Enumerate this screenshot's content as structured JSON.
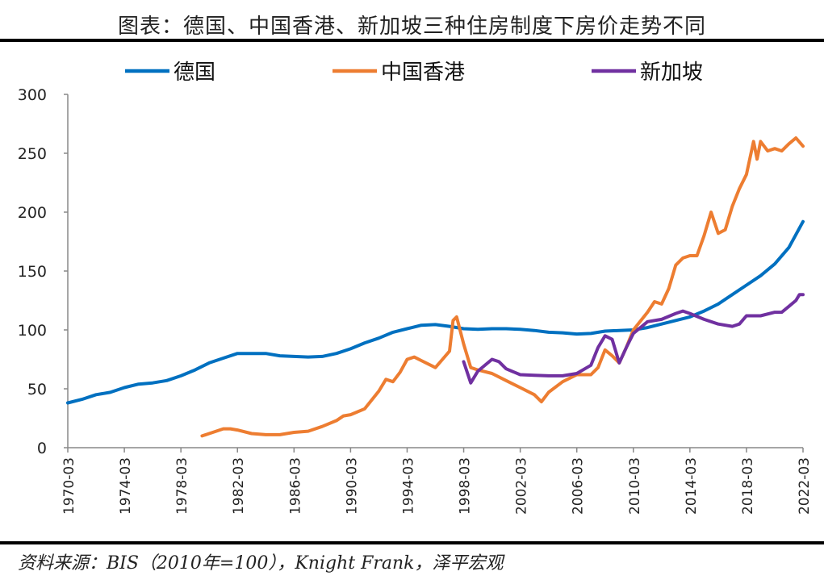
{
  "header": {
    "title": "图表：德国、中国香港、新加坡三种住房制度下房价走势不同"
  },
  "footer": {
    "source": "资料来源：BIS（2010年=100），Knight Frank，泽平宏观"
  },
  "chart_data": {
    "type": "line",
    "title": "图表：德国、中国香港、新加坡三种住房制度下房价走势不同",
    "xlabel": "",
    "ylabel": "",
    "ylim": [
      0,
      300
    ],
    "yticks": [
      "0",
      "50",
      "100",
      "150",
      "200",
      "250",
      "300"
    ],
    "xlim": [
      "1970-03",
      "2022-03"
    ],
    "xticks": [
      "1970-03",
      "1974-03",
      "1978-03",
      "1982-03",
      "1986-03",
      "1990-03",
      "1994-03",
      "1998-03",
      "2002-03",
      "2006-03",
      "2010-03",
      "2014-03",
      "2018-03",
      "2022-03"
    ],
    "legend": "top",
    "grid": false,
    "series": [
      {
        "name": "德国",
        "color": "#0070C0",
        "points": [
          [
            "1970-03",
            38
          ],
          [
            "1971-03",
            41
          ],
          [
            "1972-03",
            45
          ],
          [
            "1973-03",
            47
          ],
          [
            "1974-03",
            51
          ],
          [
            "1975-03",
            54
          ],
          [
            "1976-03",
            55
          ],
          [
            "1977-03",
            57
          ],
          [
            "1978-03",
            61
          ],
          [
            "1979-03",
            66
          ],
          [
            "1980-03",
            72
          ],
          [
            "1981-03",
            76
          ],
          [
            "1982-03",
            80
          ],
          [
            "1983-03",
            80
          ],
          [
            "1984-03",
            80
          ],
          [
            "1985-03",
            78
          ],
          [
            "1986-03",
            77.5
          ],
          [
            "1987-03",
            77
          ],
          [
            "1988-03",
            77.5
          ],
          [
            "1989-03",
            80
          ],
          [
            "1990-03",
            84
          ],
          [
            "1991-03",
            89
          ],
          [
            "1992-03",
            93
          ],
          [
            "1993-03",
            98
          ],
          [
            "1994-03",
            101
          ],
          [
            "1995-03",
            104
          ],
          [
            "1996-03",
            104.5
          ],
          [
            "1997-03",
            103
          ],
          [
            "1998-03",
            101
          ],
          [
            "1999-03",
            100.5
          ],
          [
            "2000-03",
            101
          ],
          [
            "2001-03",
            101
          ],
          [
            "2002-03",
            100.5
          ],
          [
            "2003-03",
            99.5
          ],
          [
            "2004-03",
            98
          ],
          [
            "2005-03",
            97.5
          ],
          [
            "2006-03",
            96.5
          ],
          [
            "2007-03",
            97
          ],
          [
            "2008-03",
            99
          ],
          [
            "2009-03",
            99.5
          ],
          [
            "2010-03",
            100
          ],
          [
            "2011-03",
            102
          ],
          [
            "2012-03",
            105
          ],
          [
            "2013-03",
            108
          ],
          [
            "2014-03",
            111
          ],
          [
            "2015-03",
            116
          ],
          [
            "2016-03",
            122
          ],
          [
            "2017-03",
            130
          ],
          [
            "2018-03",
            138
          ],
          [
            "2019-03",
            146
          ],
          [
            "2020-03",
            156
          ],
          [
            "2021-03",
            170
          ],
          [
            "2022-03",
            192
          ]
        ]
      },
      {
        "name": "中国香港",
        "color": "#ED7D31",
        "points": [
          [
            "1979-09",
            10
          ],
          [
            "1980-03",
            12
          ],
          [
            "1981-03",
            16
          ],
          [
            "1981-09",
            16
          ],
          [
            "1982-03",
            15
          ],
          [
            "1983-03",
            12
          ],
          [
            "1984-03",
            11
          ],
          [
            "1985-03",
            11
          ],
          [
            "1986-03",
            13
          ],
          [
            "1987-03",
            14
          ],
          [
            "1988-03",
            18
          ],
          [
            "1989-03",
            23
          ],
          [
            "1989-09",
            27
          ],
          [
            "1990-03",
            28
          ],
          [
            "1991-03",
            33
          ],
          [
            "1992-03",
            48
          ],
          [
            "1992-09",
            58
          ],
          [
            "1993-03",
            56
          ],
          [
            "1993-09",
            64
          ],
          [
            "1994-03",
            75
          ],
          [
            "1994-09",
            77
          ],
          [
            "1995-03",
            74
          ],
          [
            "1996-03",
            68
          ],
          [
            "1996-09",
            75
          ],
          [
            "1997-03",
            82
          ],
          [
            "1997-06",
            108
          ],
          [
            "1997-09",
            111
          ],
          [
            "1998-03",
            88
          ],
          [
            "1998-09",
            68
          ],
          [
            "1999-03",
            66
          ],
          [
            "2000-03",
            63
          ],
          [
            "2001-03",
            57
          ],
          [
            "2002-03",
            51
          ],
          [
            "2003-03",
            45
          ],
          [
            "2003-09",
            39
          ],
          [
            "2004-03",
            47
          ],
          [
            "2005-03",
            56
          ],
          [
            "2006-03",
            62
          ],
          [
            "2007-03",
            62
          ],
          [
            "2007-09",
            68
          ],
          [
            "2008-03",
            83
          ],
          [
            "2008-09",
            78
          ],
          [
            "2009-03",
            72
          ],
          [
            "2009-09",
            85
          ],
          [
            "2010-03",
            100
          ],
          [
            "2011-03",
            115
          ],
          [
            "2011-09",
            124
          ],
          [
            "2012-03",
            122
          ],
          [
            "2012-09",
            135
          ],
          [
            "2013-03",
            155
          ],
          [
            "2013-09",
            161
          ],
          [
            "2014-03",
            163
          ],
          [
            "2014-09",
            163
          ],
          [
            "2015-03",
            180
          ],
          [
            "2015-09",
            200
          ],
          [
            "2016-03",
            182
          ],
          [
            "2016-09",
            185
          ],
          [
            "2017-03",
            205
          ],
          [
            "2017-09",
            220
          ],
          [
            "2018-03",
            232
          ],
          [
            "2018-09",
            260
          ],
          [
            "2018-12",
            245
          ],
          [
            "2019-03",
            260
          ],
          [
            "2019-09",
            252
          ],
          [
            "2020-03",
            254
          ],
          [
            "2020-09",
            252
          ],
          [
            "2021-03",
            258
          ],
          [
            "2021-09",
            263
          ],
          [
            "2022-03",
            256
          ]
        ]
      },
      {
        "name": "新加坡",
        "color": "#7030A0",
        "points": [
          [
            "1998-03",
            73
          ],
          [
            "1998-09",
            55
          ],
          [
            "1999-03",
            65
          ],
          [
            "2000-03",
            75
          ],
          [
            "2000-09",
            73
          ],
          [
            "2001-03",
            67
          ],
          [
            "2002-03",
            62
          ],
          [
            "2003-03",
            61.5
          ],
          [
            "2004-03",
            61
          ],
          [
            "2005-03",
            61
          ],
          [
            "2006-03",
            63
          ],
          [
            "2007-03",
            70
          ],
          [
            "2007-09",
            85
          ],
          [
            "2008-03",
            95
          ],
          [
            "2008-09",
            92
          ],
          [
            "2009-03",
            72
          ],
          [
            "2009-09",
            85
          ],
          [
            "2010-03",
            97
          ],
          [
            "2011-03",
            107
          ],
          [
            "2012-03",
            109
          ],
          [
            "2013-03",
            114
          ],
          [
            "2013-09",
            116
          ],
          [
            "2014-03",
            114
          ],
          [
            "2015-03",
            109
          ],
          [
            "2016-03",
            105
          ],
          [
            "2017-03",
            103
          ],
          [
            "2017-09",
            105
          ],
          [
            "2018-03",
            112
          ],
          [
            "2019-03",
            112
          ],
          [
            "2020-03",
            115
          ],
          [
            "2020-09",
            115
          ],
          [
            "2021-03",
            120
          ],
          [
            "2021-09",
            125
          ],
          [
            "2021-12",
            130
          ],
          [
            "2022-03",
            130
          ]
        ]
      }
    ]
  }
}
